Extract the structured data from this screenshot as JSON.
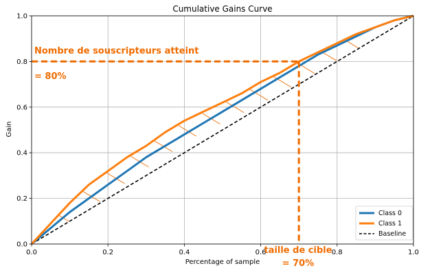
{
  "chart_data": {
    "type": "line",
    "title": "Cumulative Gains Curve",
    "xlabel": "Percentage of sample",
    "ylabel": "Gain",
    "xlim": [
      0,
      1
    ],
    "ylim": [
      0,
      1
    ],
    "xticks": [
      "0.0",
      "0.2",
      "0.4",
      "0.6",
      "0.8",
      "1.0"
    ],
    "yticks": [
      "0.0",
      "0.2",
      "0.4",
      "0.6",
      "0.8",
      "1.0"
    ],
    "grid": true,
    "legend_position": "bottom-right",
    "series": [
      {
        "name": "Class 0",
        "color": "#1f77b4",
        "x": [
          0,
          0.05,
          0.1,
          0.15,
          0.2,
          0.25,
          0.3,
          0.35,
          0.4,
          0.45,
          0.5,
          0.55,
          0.6,
          0.65,
          0.7,
          0.75,
          0.8,
          0.85,
          0.9,
          0.95,
          1.0
        ],
        "y": [
          0,
          0.07,
          0.14,
          0.2,
          0.26,
          0.32,
          0.38,
          0.43,
          0.48,
          0.53,
          0.58,
          0.63,
          0.68,
          0.73,
          0.78,
          0.83,
          0.87,
          0.91,
          0.95,
          0.98,
          1.0
        ]
      },
      {
        "name": "Class 1",
        "color": "#ff7f0e",
        "x": [
          0,
          0.05,
          0.1,
          0.15,
          0.2,
          0.25,
          0.3,
          0.35,
          0.4,
          0.45,
          0.5,
          0.55,
          0.6,
          0.65,
          0.7,
          0.75,
          0.8,
          0.85,
          0.9,
          0.95,
          1.0
        ],
        "y": [
          0,
          0.09,
          0.18,
          0.26,
          0.32,
          0.38,
          0.43,
          0.49,
          0.54,
          0.58,
          0.62,
          0.66,
          0.71,
          0.75,
          0.8,
          0.84,
          0.88,
          0.92,
          0.95,
          0.98,
          1.0
        ]
      },
      {
        "name": "Baseline",
        "color": "#000000",
        "dashed": true,
        "x": [
          0,
          1
        ],
        "y": [
          0,
          1
        ]
      }
    ],
    "annotations": {
      "color": "#ef6c00",
      "target_x": 0.7,
      "target_y": 0.8,
      "text_top_line1": "Nombre de souscripteurs atteint",
      "text_top_line2": "= 80%",
      "text_bottom_line1": "taille de cible",
      "text_bottom_line2": "= 70%"
    }
  }
}
